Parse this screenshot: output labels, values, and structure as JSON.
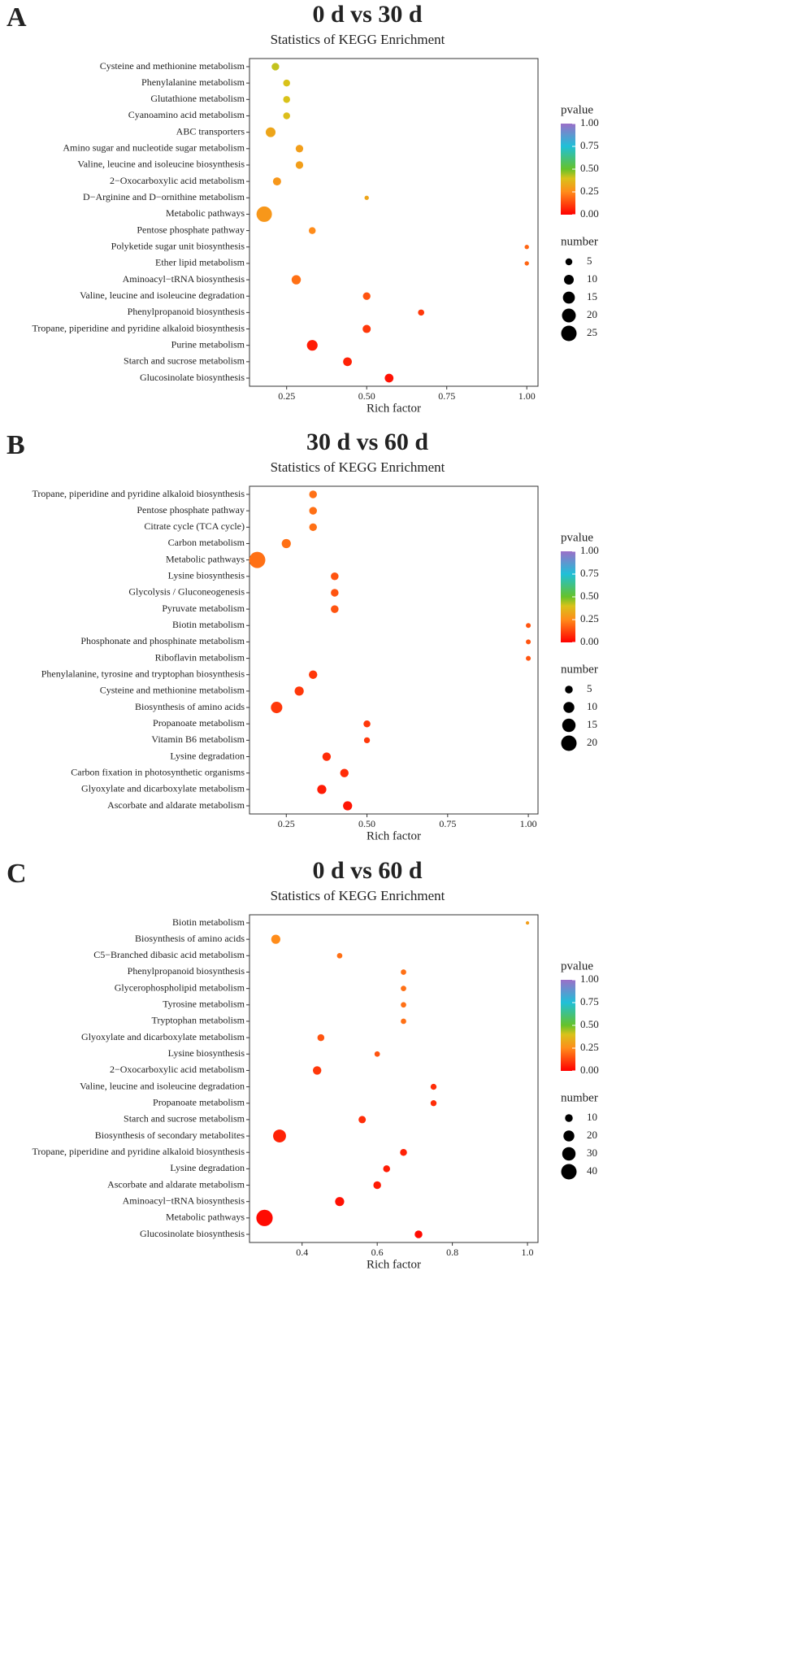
{
  "chart_data": [
    {
      "type": "scatter",
      "panel_label": "A",
      "title": "0 d vs 30 d",
      "subtitle": "Statistics of KEGG Enrichment",
      "xlabel": "Rich factor",
      "categories": [
        "Cysteine and methionine metabolism",
        "Phenylalanine metabolism",
        "Glutathione metabolism",
        "Cyanoamino acid metabolism",
        "ABC transporters",
        "Amino sugar and nucleotide sugar metabolism",
        "Valine, leucine and isoleucine biosynthesis",
        "2−Oxocarboxylic acid metabolism",
        "D−Arginine and D−ornithine metabolism",
        "Metabolic pathways",
        "Pentose phosphate pathway",
        "Polyketide sugar unit biosynthesis",
        "Ether lipid metabolism",
        "Aminoacyl−tRNA biosynthesis",
        "Valine, leucine and isoleucine degradation",
        "Phenylpropanoid biosynthesis",
        "Tropane, piperidine and pyridine alkaloid biosynthesis",
        "Purine metabolism",
        "Starch and sucrose metabolism",
        "Glucosinolate biosynthesis"
      ],
      "x": [
        0.215,
        0.25,
        0.25,
        0.25,
        0.2,
        0.29,
        0.29,
        0.22,
        0.5,
        0.18,
        0.33,
        1.0,
        1.0,
        0.28,
        0.5,
        0.67,
        0.5,
        0.33,
        0.44,
        0.57
      ],
      "sizes": [
        6,
        5,
        5,
        5,
        10,
        6,
        6,
        7,
        2,
        25,
        5,
        2,
        2,
        9,
        6,
        4,
        7,
        12,
        8,
        8
      ],
      "pvalues": [
        0.42,
        0.4,
        0.4,
        0.39,
        0.32,
        0.3,
        0.3,
        0.28,
        0.32,
        0.28,
        0.25,
        0.18,
        0.18,
        0.2,
        0.15,
        0.1,
        0.1,
        0.05,
        0.06,
        0.03
      ],
      "xlim": [
        0.134,
        1.035
      ],
      "xticks": [
        0.25,
        {
          "value": 0.5,
          "label": "0.50"
        },
        0.75,
        {
          "value": 1.0,
          "label": "1.00"
        }
      ],
      "color_title": "pvalue",
      "clim": [
        0,
        1
      ],
      "colorbar_ticks": [
        {
          "value": 0,
          "label": "0.00"
        },
        0.25,
        {
          "value": 0.5,
          "label": "0.50"
        },
        0.75,
        {
          "value": 1,
          "label": "1.00"
        }
      ],
      "colorscale": [
        [
          0,
          "#ff0000"
        ],
        [
          0.25,
          "#ff8c1a"
        ],
        [
          0.4,
          "#d9c21a"
        ],
        [
          0.5,
          "#66c22a"
        ],
        [
          0.75,
          "#1fc0d8"
        ],
        [
          1,
          "#9b6fc8"
        ]
      ],
      "size_title": "number",
      "size_ticks": [
        5,
        10,
        15,
        20,
        25
      ]
    },
    {
      "type": "scatter",
      "panel_label": "B",
      "title": "30 d vs 60 d",
      "subtitle": "Statistics of KEGG Enrichment",
      "xlabel": "Rich factor",
      "categories": [
        "Tropane, piperidine and pyridine alkaloid biosynthesis",
        "Pentose phosphate pathway",
        "Citrate cycle (TCA cycle)",
        "Carbon metabolism",
        "Metabolic pathways",
        "Lysine biosynthesis",
        "Glycolysis / Gluconeogenesis",
        "Pyruvate metabolism",
        "Biotin metabolism",
        "Phosphonate and phosphinate metabolism",
        "Riboflavin metabolism",
        "Phenylalanine, tyrosine and tryptophan biosynthesis",
        "Cysteine and methionine metabolism",
        "Biosynthesis of amino acids",
        "Propanoate metabolism",
        "Vitamin B6 metabolism",
        "Lysine degradation",
        "Carbon fixation in photosynthetic organisms",
        "Glyoxylate and dicarboxylate metabolism",
        "Ascorbate and aldarate metabolism"
      ],
      "x": [
        0.333,
        0.333,
        0.333,
        0.25,
        0.16,
        0.4,
        0.4,
        0.4,
        1.0,
        1.0,
        1.0,
        0.333,
        0.29,
        0.22,
        0.5,
        0.5,
        0.375,
        0.43,
        0.36,
        0.44
      ],
      "sizes": [
        5,
        5,
        5,
        7,
        22,
        5,
        5,
        5,
        2,
        2,
        2,
        6,
        7,
        11,
        4,
        3,
        6,
        6,
        7,
        7
      ],
      "pvalues": [
        0.2,
        0.2,
        0.2,
        0.2,
        0.2,
        0.15,
        0.15,
        0.15,
        0.15,
        0.15,
        0.15,
        0.1,
        0.1,
        0.1,
        0.1,
        0.1,
        0.08,
        0.08,
        0.05,
        0.04
      ],
      "xlim": [
        0.136,
        1.03
      ],
      "xticks": [
        0.25,
        {
          "value": 0.5,
          "label": "0.50"
        },
        0.75,
        {
          "value": 1.0,
          "label": "1.00"
        }
      ],
      "color_title": "pvalue",
      "clim": [
        0,
        1
      ],
      "colorbar_ticks": [
        {
          "value": 0,
          "label": "0.00"
        },
        0.25,
        {
          "value": 0.5,
          "label": "0.50"
        },
        0.75,
        {
          "value": 1,
          "label": "1.00"
        }
      ],
      "colorscale": [
        [
          0,
          "#ff0000"
        ],
        [
          0.25,
          "#ff8c1a"
        ],
        [
          0.4,
          "#d9c21a"
        ],
        [
          0.5,
          "#66c22a"
        ],
        [
          0.75,
          "#1fc0d8"
        ],
        [
          1,
          "#9b6fc8"
        ]
      ],
      "size_title": "number",
      "size_ticks": [
        5,
        10,
        15,
        20
      ]
    },
    {
      "type": "scatter",
      "panel_label": "C",
      "title": "0 d vs 60 d",
      "subtitle": "Statistics of KEGG Enrichment",
      "xlabel": "Rich factor",
      "categories": [
        "Biotin metabolism",
        "Biosynthesis of amino acids",
        "C5−Branched dibasic acid metabolism",
        "Phenylpropanoid biosynthesis",
        "Glycerophospholipid metabolism",
        "Tyrosine metabolism",
        "Tryptophan metabolism",
        "Glyoxylate and dicarboxylate metabolism",
        "Lysine biosynthesis",
        "2−Oxocarboxylic acid metabolism",
        "Valine, leucine and isoleucine degradation",
        "Propanoate metabolism",
        "Starch and sucrose metabolism",
        "Biosynthesis of secondary metabolites",
        "Tropane, piperidine and pyridine alkaloid biosynthesis",
        "Lysine degradation",
        "Ascorbate and aldarate metabolism",
        "Aminoacyl−tRNA biosynthesis",
        "Metabolic pathways",
        "Glucosinolate biosynthesis"
      ],
      "x": [
        1.0,
        0.33,
        0.5,
        0.67,
        0.67,
        0.67,
        0.67,
        0.45,
        0.6,
        0.44,
        0.75,
        0.75,
        0.56,
        0.34,
        0.67,
        0.625,
        0.6,
        0.5,
        0.3,
        0.71
      ],
      "sizes": [
        2,
        14,
        5,
        5,
        5,
        5,
        5,
        8,
        5,
        12,
        6,
        6,
        9,
        28,
        8,
        8,
        10,
        14,
        45,
        10
      ],
      "pvalues": [
        0.3,
        0.25,
        0.2,
        0.2,
        0.2,
        0.2,
        0.2,
        0.15,
        0.15,
        0.1,
        0.08,
        0.08,
        0.08,
        0.06,
        0.06,
        0.05,
        0.05,
        0.03,
        0.02,
        0.02
      ],
      "xlim": [
        0.26,
        1.028
      ],
      "xticks": [
        0.4,
        0.6,
        0.8,
        {
          "value": 1.0,
          "label": "1.0"
        }
      ],
      "color_title": "pvalue",
      "clim": [
        0,
        1
      ],
      "colorbar_ticks": [
        {
          "value": 0,
          "label": "0.00"
        },
        0.25,
        {
          "value": 0.5,
          "label": "0.50"
        },
        0.75,
        {
          "value": 1,
          "label": "1.00"
        }
      ],
      "colorscale": [
        [
          0,
          "#ff0000"
        ],
        [
          0.25,
          "#ff8c1a"
        ],
        [
          0.4,
          "#d9c21a"
        ],
        [
          0.5,
          "#66c22a"
        ],
        [
          0.75,
          "#1fc0d8"
        ],
        [
          1,
          "#9b6fc8"
        ]
      ],
      "size_title": "number",
      "size_ticks": [
        10,
        20,
        30,
        40
      ]
    }
  ]
}
